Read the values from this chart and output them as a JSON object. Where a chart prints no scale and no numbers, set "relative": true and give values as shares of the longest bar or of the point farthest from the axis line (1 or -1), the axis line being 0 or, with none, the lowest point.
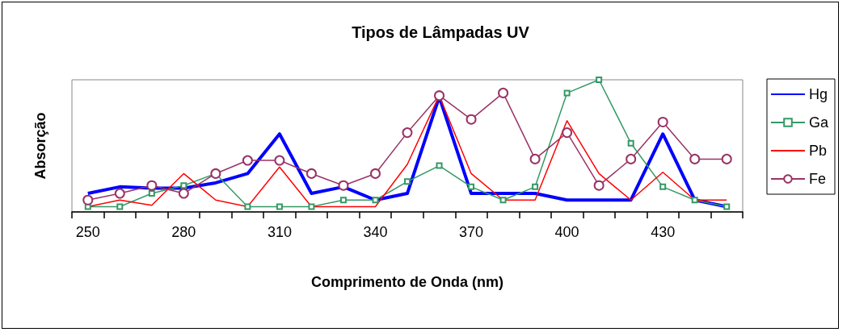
{
  "chart_data": {
    "type": "line",
    "title": "Tipos de Lâmpadas UV",
    "xlabel": "Comprimento de Onda (nm)",
    "ylabel": "Absorção",
    "relative": true,
    "legend": "right",
    "grid": false,
    "categories": [
      "250",
      null,
      null,
      "280",
      null,
      null,
      "310",
      null,
      null,
      "340",
      null,
      null,
      "370",
      null,
      null,
      "400",
      null,
      null,
      "430",
      null,
      null
    ],
    "series": [
      {
        "name": "Hg",
        "color": "#0000ff",
        "marker": "none",
        "values": [
          0.14,
          0.19,
          0.18,
          0.18,
          0.22,
          0.29,
          0.59,
          0.14,
          0.19,
          0.09,
          0.14,
          0.87,
          0.14,
          0.14,
          0.14,
          0.09,
          0.09,
          0.09,
          0.59,
          0.09,
          0.04
        ]
      },
      {
        "name": "Ga",
        "color": "#339966",
        "marker": "square",
        "values": [
          0.04,
          0.04,
          0.14,
          0.2,
          0.29,
          0.04,
          0.04,
          0.04,
          0.09,
          0.09,
          0.23,
          0.35,
          0.19,
          0.09,
          0.19,
          0.9,
          1,
          0.52,
          0.19,
          0.09,
          0.04
        ]
      },
      {
        "name": "Pb",
        "color": "#ff0000",
        "marker": "none",
        "values": [
          0.04,
          0.09,
          0.05,
          0.29,
          0.09,
          0.04,
          0.34,
          0.04,
          0.04,
          0.04,
          0.36,
          0.88,
          0.29,
          0.09,
          0.09,
          0.69,
          0.29,
          0.09,
          0.3,
          0.09,
          0.09
        ]
      },
      {
        "name": "Fe",
        "color": "#993366",
        "marker": "circle",
        "values": [
          0.09,
          0.14,
          0.2,
          0.14,
          0.29,
          0.39,
          0.39,
          0.29,
          0.2,
          0.29,
          0.6,
          0.88,
          0.7,
          0.9,
          0.4,
          0.6,
          0.2,
          0.4,
          0.68,
          0.4,
          0.4
        ]
      }
    ]
  }
}
